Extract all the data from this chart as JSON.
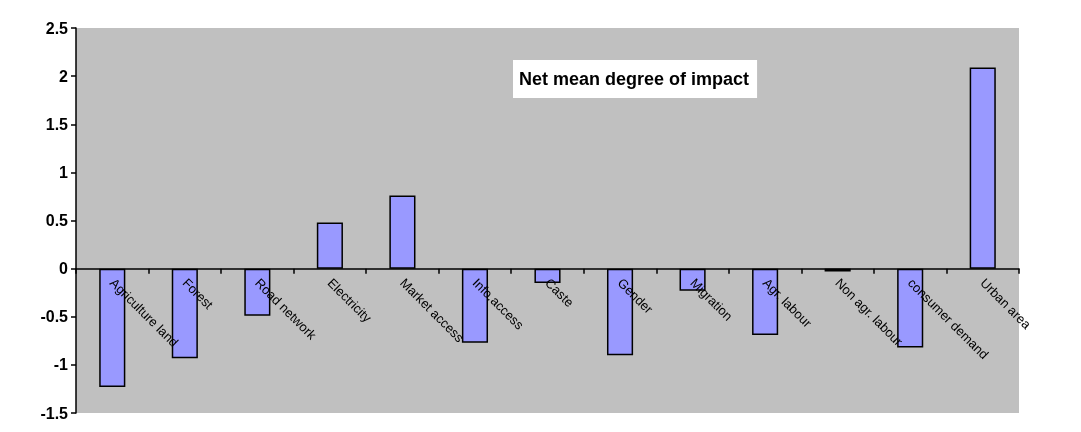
{
  "chart_data": {
    "type": "bar",
    "title": "Net mean degree of impact",
    "categories": [
      "Agriculture land",
      "Forest",
      "Road network",
      "Electricity",
      "Market access",
      "Info.access",
      "Caste",
      "Gender",
      "Migration",
      "Agr. labour",
      "Non agr. labour",
      "consumer demand",
      "Urban area"
    ],
    "values": [
      -1.23,
      -0.93,
      -0.49,
      0.48,
      0.76,
      -0.77,
      -0.15,
      -0.9,
      -0.23,
      -0.69,
      -0.03,
      -0.82,
      2.09
    ],
    "color": "#9999ff",
    "ylim": [
      -1.5,
      2.5
    ],
    "yticks": [
      -1.5,
      -1,
      -0.5,
      0,
      0.5,
      1,
      1.5,
      2,
      2.5
    ]
  }
}
